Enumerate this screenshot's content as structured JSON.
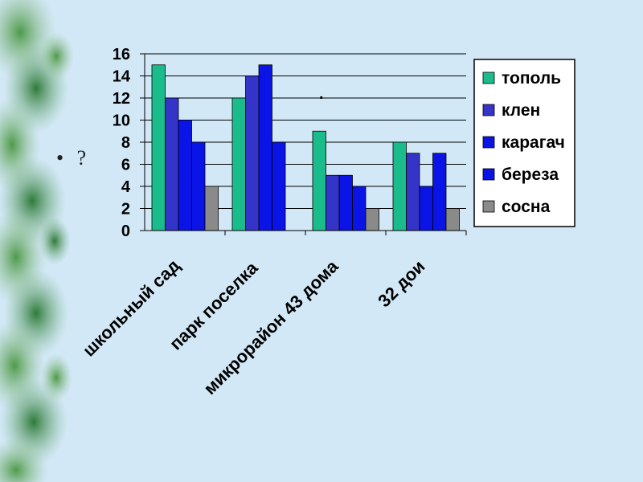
{
  "slide": {
    "bullet_marker": "•",
    "bullet_text": "?"
  },
  "chart_data": {
    "type": "bar",
    "categories": [
      "школьный сад",
      "парк поселка",
      "микрорайон 43 дома",
      "32 дои"
    ],
    "series": [
      {
        "name": "тополь",
        "color": "#1abc8c",
        "values": [
          15,
          12,
          9,
          8
        ]
      },
      {
        "name": "клен",
        "color": "#3434c8",
        "values": [
          12,
          14,
          5,
          7
        ]
      },
      {
        "name": "карагач",
        "color": "#0a14e6",
        "values": [
          10,
          15,
          5,
          4
        ]
      },
      {
        "name": "береза",
        "color": "#0a14e6",
        "values": [
          8,
          8,
          4,
          7
        ]
      },
      {
        "name": "сосна",
        "color": "#8a8a8a",
        "values": [
          4,
          0,
          2,
          2
        ]
      }
    ],
    "ylim": [
      0,
      16
    ],
    "yticks": [
      "0",
      "2",
      "4",
      "6",
      "8",
      "10",
      "12",
      "14",
      "16"
    ],
    "grid": true,
    "legend_position": "right",
    "annotation": "."
  }
}
